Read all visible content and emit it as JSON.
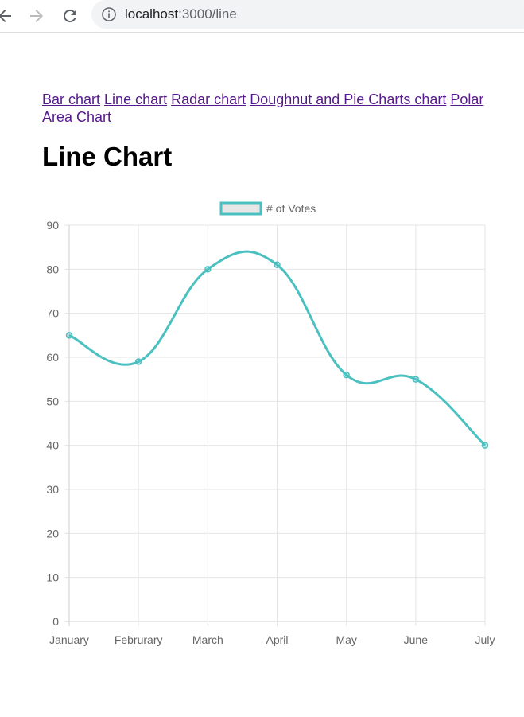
{
  "browser": {
    "url_host": "localhost",
    "url_path": ":3000/line"
  },
  "nav": {
    "links": [
      {
        "label": "Bar chart"
      },
      {
        "label": "Line chart"
      },
      {
        "label": "Radar chart"
      },
      {
        "label": "Doughnut and Pie Charts chart"
      },
      {
        "label": "Polar Area Chart"
      }
    ]
  },
  "page": {
    "title": "Line Chart"
  },
  "colors": {
    "line": "#4bc0c0",
    "legend_fill": "#e6e6e6",
    "grid": "#e5e5e5",
    "axis_text": "#666666"
  },
  "chart_data": {
    "type": "line",
    "categories": [
      "January",
      "Februrary",
      "March",
      "April",
      "May",
      "June",
      "July"
    ],
    "series": [
      {
        "name": "# of Votes",
        "values": [
          65,
          59,
          80,
          81,
          56,
          55,
          40
        ]
      }
    ],
    "ylim": [
      0,
      90
    ],
    "yticks": [
      0,
      10,
      20,
      30,
      40,
      50,
      60,
      70,
      80,
      90
    ],
    "grid": true,
    "legend_position": "top"
  }
}
